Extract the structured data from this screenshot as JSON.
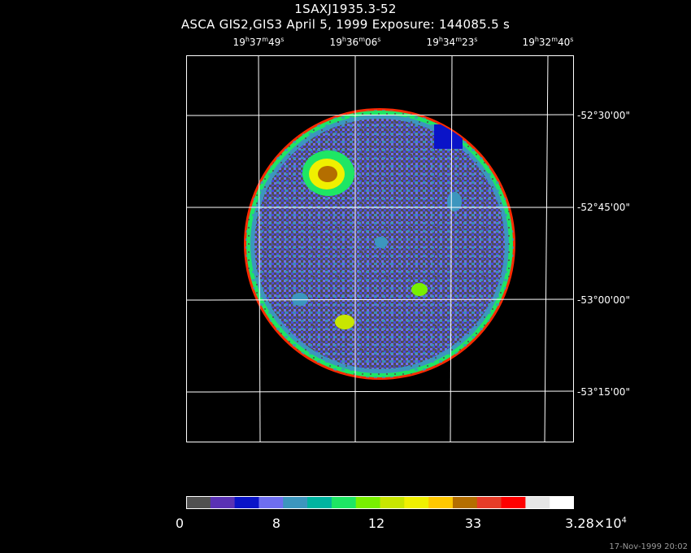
{
  "header": {
    "title": "1SAXJ1935.3-52",
    "subtitle": "ASCA GIS2,GIS3 April 5, 1999 Exposure: 144085.5 s"
  },
  "ra_labels": [
    {
      "h": "19",
      "m": "37",
      "s": "49"
    },
    {
      "h": "19",
      "m": "36",
      "s": "06"
    },
    {
      "h": "19",
      "m": "34",
      "s": "23"
    },
    {
      "h": "19",
      "m": "32",
      "s": "40"
    }
  ],
  "dec_labels": [
    "-52°30'00\"",
    "-52°45'00\"",
    "-53°00'00\"",
    "-53°15'00\""
  ],
  "colorbar": {
    "colors": [
      "#505050",
      "#5a32b4",
      "#0a14c8",
      "#6e6ef0",
      "#3c96be",
      "#00b4a0",
      "#1ee664",
      "#78f000",
      "#c8e600",
      "#f0f000",
      "#ffc800",
      "#b46e00",
      "#e63c28",
      "#ff0000",
      "#e6e6e6",
      "#ffffff"
    ],
    "labels": [
      "0",
      "8",
      "12",
      "33"
    ],
    "max_label_base": "3.28×10",
    "max_label_exp": "4"
  },
  "footer": {
    "timestamp": "17-Nov-1999 20:02"
  }
}
